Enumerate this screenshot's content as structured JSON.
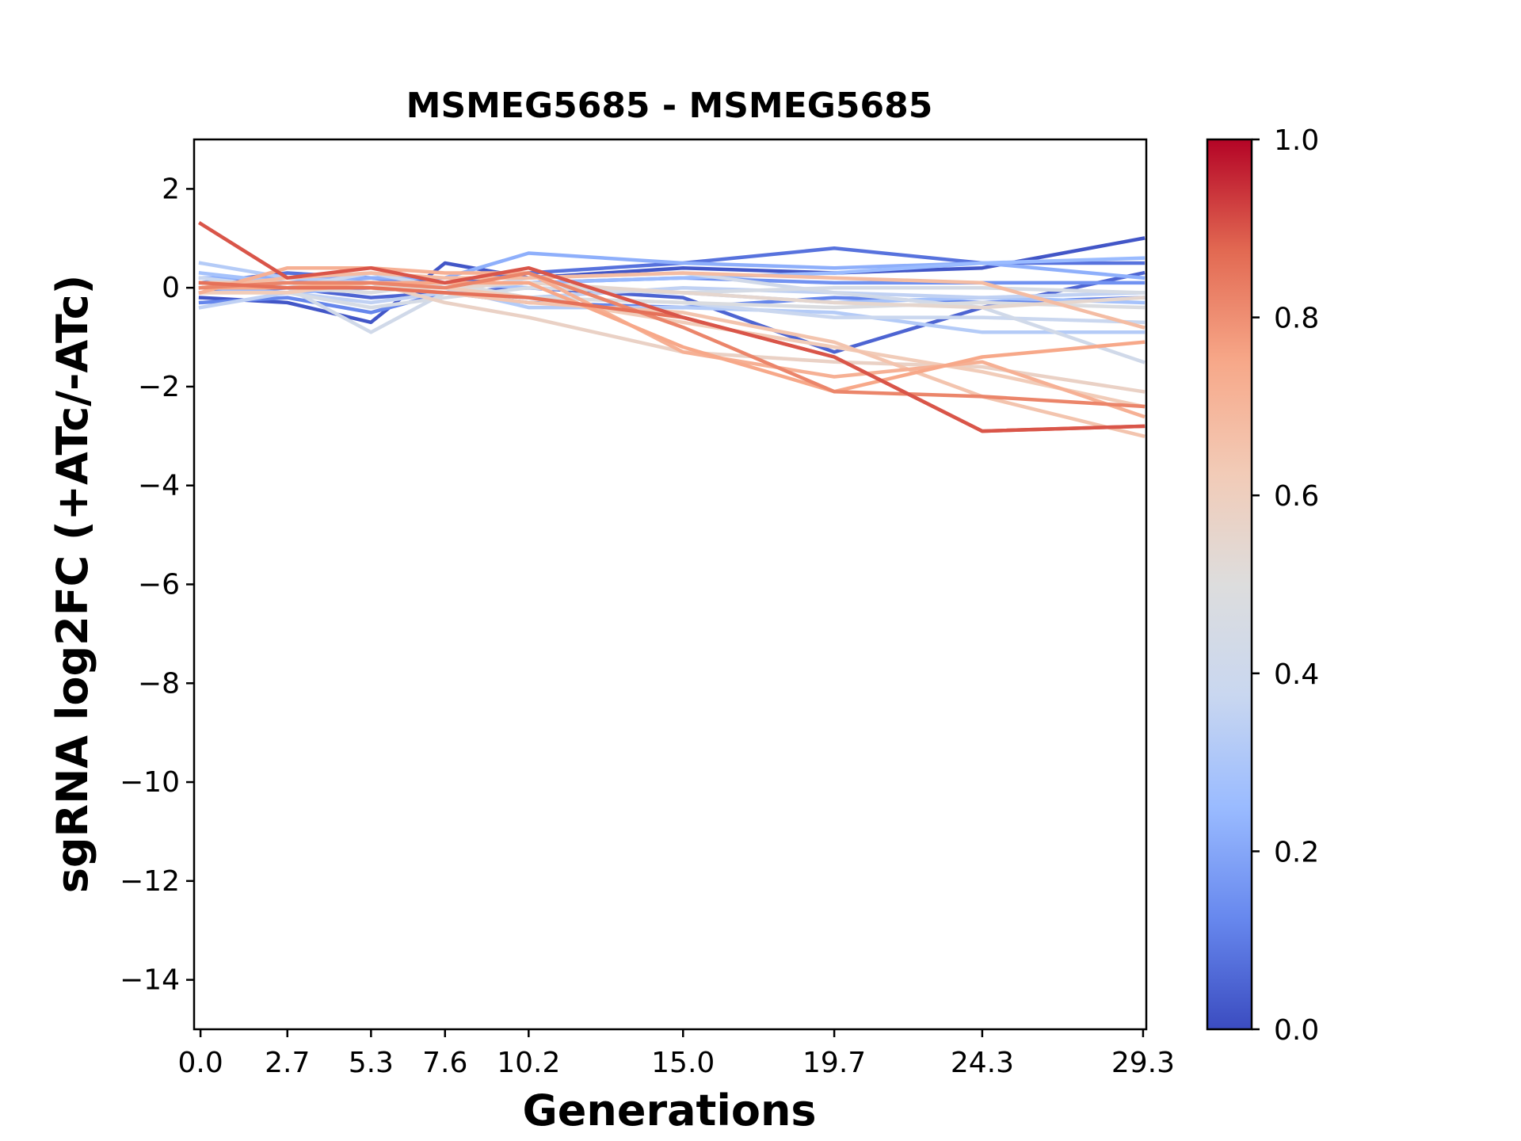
{
  "chart_data": {
    "type": "line",
    "title": "MSMEG5685 - MSMEG5685",
    "xlabel": "Generations",
    "ylabel": "sgRNA log2FC (+ATc/-ATc)",
    "x": [
      0.0,
      2.7,
      5.3,
      7.6,
      10.2,
      15.0,
      19.7,
      24.3,
      29.3
    ],
    "x_tick_labels": [
      "0.0",
      "2.7",
      "5.3",
      "7.6",
      "10.2",
      "15.0",
      "19.7",
      "24.3",
      "29.3"
    ],
    "xlim": [
      -0.2,
      29.4
    ],
    "ylim": [
      -15,
      3
    ],
    "y_ticks": [
      2,
      0,
      -2,
      -4,
      -6,
      -8,
      -10,
      -12,
      -14
    ],
    "y_tick_labels": [
      "2",
      "0",
      "−2",
      "−4",
      "−6",
      "−8",
      "−10",
      "−12",
      "−14"
    ],
    "colorbar": {
      "colormap": "coolwarm",
      "range": [
        0.0,
        1.0
      ],
      "tick_labels": [
        "1.0",
        "0.8",
        "0.6",
        "0.4",
        "0.2",
        "0.0"
      ],
      "tick_values": [
        1.0,
        0.8,
        0.6,
        0.4,
        0.2,
        0.0
      ],
      "stops": [
        "#3b4cc0",
        "#6788ee",
        "#9abbff",
        "#c9d7f0",
        "#dddddd",
        "#f2cbb7",
        "#f7a889",
        "#e26952",
        "#b40426"
      ]
    },
    "series": [
      {
        "c": 0.02,
        "values": [
          -0.2,
          -0.3,
          -0.7,
          0.5,
          0.2,
          0.4,
          0.3,
          0.4,
          1.0
        ]
      },
      {
        "c": 0.08,
        "values": [
          0.1,
          0.3,
          0.2,
          0.1,
          0.3,
          0.5,
          0.8,
          0.5,
          0.5
        ]
      },
      {
        "c": 0.05,
        "values": [
          -0.1,
          0.0,
          -0.2,
          -0.1,
          0.0,
          -0.2,
          -1.3,
          -0.4,
          0.3
        ]
      },
      {
        "c": 0.15,
        "values": [
          0.0,
          0.1,
          0.2,
          0.0,
          0.1,
          0.2,
          0.1,
          0.1,
          0.1
        ]
      },
      {
        "c": 0.12,
        "values": [
          -0.3,
          -0.2,
          -0.5,
          -0.1,
          -0.3,
          -0.4,
          -0.2,
          -0.3,
          -0.2
        ]
      },
      {
        "c": 0.22,
        "values": [
          0.2,
          0.2,
          0.2,
          0.2,
          0.7,
          0.5,
          0.4,
          0.5,
          0.2
        ]
      },
      {
        "c": 0.25,
        "values": [
          0.0,
          -0.1,
          0.0,
          0.0,
          0.1,
          0.2,
          0.3,
          0.5,
          0.6
        ]
      },
      {
        "c": 0.28,
        "values": [
          0.3,
          0.1,
          0.0,
          0.1,
          0.0,
          -0.1,
          -0.3,
          -0.2,
          -0.3
        ]
      },
      {
        "c": 0.32,
        "values": [
          0.5,
          0.2,
          0.1,
          0.0,
          -0.4,
          -0.4,
          -0.5,
          -0.9,
          -0.9
        ]
      },
      {
        "c": 0.35,
        "values": [
          -0.4,
          -0.1,
          -0.3,
          -0.1,
          -0.2,
          0.0,
          -0.1,
          -0.2,
          -0.1
        ]
      },
      {
        "c": 0.38,
        "values": [
          0.2,
          0.0,
          0.3,
          0.0,
          -0.2,
          -0.3,
          -0.6,
          -0.6,
          -0.7
        ]
      },
      {
        "c": 0.42,
        "values": [
          0.1,
          0.0,
          -0.9,
          -0.1,
          0.2,
          0.3,
          -0.1,
          -0.4,
          -1.5
        ]
      },
      {
        "c": 0.45,
        "values": [
          -0.1,
          -0.1,
          -0.4,
          -0.2,
          0.0,
          -0.1,
          0.0,
          0.0,
          -0.1
        ]
      },
      {
        "c": 0.48,
        "values": [
          0.0,
          0.0,
          -0.1,
          0.1,
          -0.2,
          -0.3,
          -0.4,
          -0.3,
          -0.4
        ]
      },
      {
        "c": 0.55,
        "values": [
          0.1,
          0.1,
          0.0,
          0.0,
          0.1,
          -0.1,
          -0.3,
          -0.4,
          -0.2
        ]
      },
      {
        "c": 0.58,
        "values": [
          0.0,
          0.1,
          0.1,
          -0.3,
          -0.6,
          -1.3,
          -1.5,
          -1.6,
          -2.1
        ]
      },
      {
        "c": 0.62,
        "values": [
          -0.1,
          -0.1,
          0.1,
          0.0,
          -0.2,
          -0.7,
          -1.2,
          -1.7,
          -2.4
        ]
      },
      {
        "c": 0.65,
        "values": [
          0.1,
          0.1,
          0.0,
          -0.1,
          -0.3,
          -0.5,
          -1.1,
          -2.2,
          -3.0
        ]
      },
      {
        "c": 0.68,
        "values": [
          0.0,
          0.2,
          0.3,
          0.2,
          0.2,
          0.3,
          0.2,
          0.1,
          -0.8
        ]
      },
      {
        "c": 0.72,
        "values": [
          -0.1,
          0.4,
          0.4,
          0.3,
          0.3,
          -1.3,
          -1.8,
          -1.5,
          -2.6
        ]
      },
      {
        "c": 0.75,
        "values": [
          0.0,
          0.0,
          0.1,
          0.1,
          0.1,
          -1.2,
          -2.1,
          -1.4,
          -1.1
        ]
      },
      {
        "c": 0.82,
        "values": [
          0.0,
          0.1,
          0.1,
          0.0,
          0.3,
          -0.8,
          -2.1,
          -2.2,
          -2.4
        ]
      },
      {
        "c": 0.86,
        "values": [
          0.1,
          0.0,
          0.0,
          -0.1,
          -0.2,
          -0.6,
          -1.4,
          -2.9,
          -2.8
        ]
      },
      {
        "c": 0.9,
        "values": [
          1.3,
          0.2,
          0.4,
          0.1,
          0.4,
          -0.6,
          -1.4,
          -2.9,
          -2.8
        ]
      }
    ]
  }
}
